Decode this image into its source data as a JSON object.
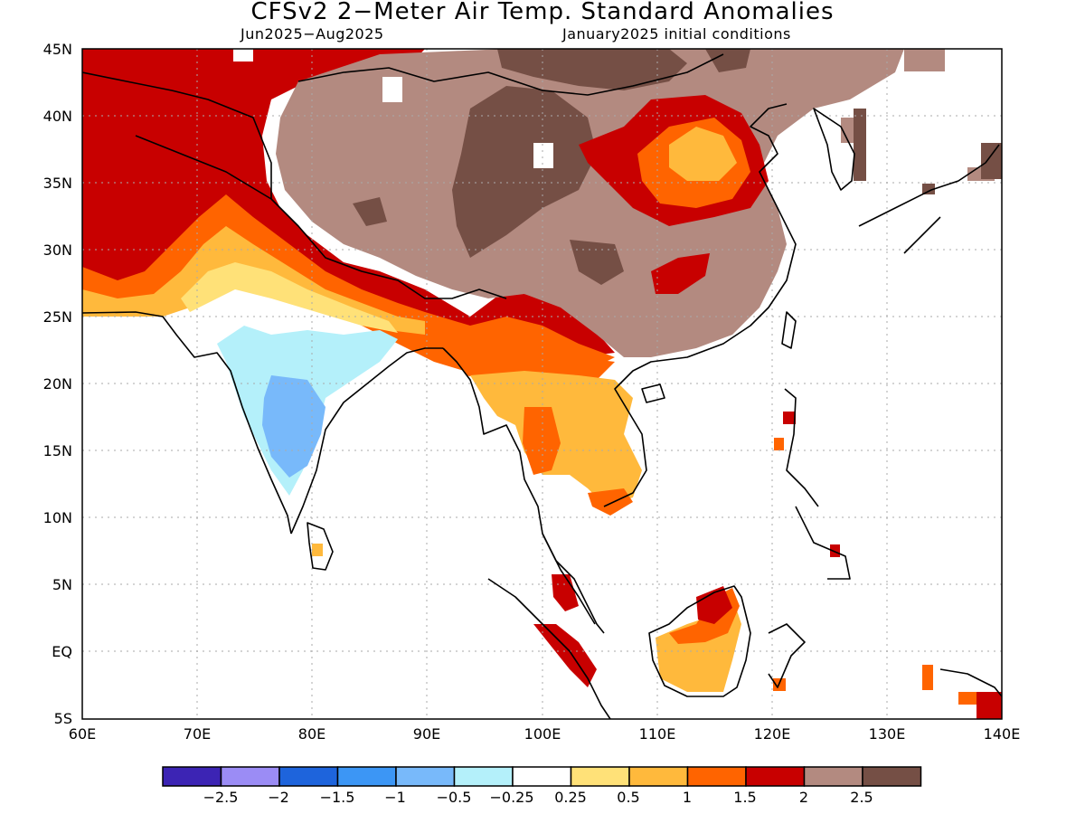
{
  "title": "CFSv2 2−Meter Air Temp. Standard Anomalies",
  "subtitle_left": "Jun2025−Aug2025",
  "subtitle_right": "January2025 initial conditions",
  "lat_labels": [
    "45N",
    "40N",
    "35N",
    "30N",
    "25N",
    "20N",
    "15N",
    "10N",
    "5N",
    "EQ",
    "5S"
  ],
  "lon_labels": [
    "60E",
    "70E",
    "80E",
    "90E",
    "100E",
    "110E",
    "120E",
    "130E",
    "140E"
  ],
  "colorbar": {
    "colors": [
      "#3c24b4",
      "#9b8cf5",
      "#1e64dc",
      "#3c96f5",
      "#78b9fa",
      "#b4f0fa",
      "#ffffff",
      "#ffe178",
      "#ffb93c",
      "#ff6400",
      "#c80000",
      "#b38a80",
      "#754f45"
    ],
    "labels": [
      "−2.5",
      "−2",
      "−1.5",
      "−1",
      "−0.5",
      "−0.25",
      "0.25",
      "0.5",
      "1",
      "1.5",
      "2",
      "2.5"
    ]
  },
  "colors": {
    "land_outline": "#000000",
    "grid": "#aaaaaa",
    "frame": "#000000"
  }
}
